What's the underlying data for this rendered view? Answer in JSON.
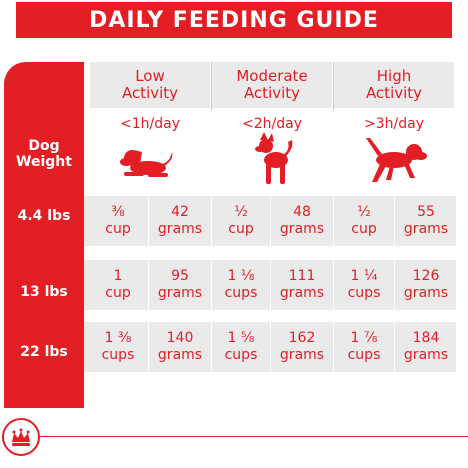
{
  "title": "DAILY FEEDING GUIDE",
  "dog_weight_label": [
    "Dog",
    "Weight"
  ],
  "activities": [
    {
      "label": [
        "Low",
        "Activity"
      ],
      "time": "<1h/day",
      "icon": "lying-dog-icon"
    },
    {
      "label": [
        "Moderate",
        "Activity"
      ],
      "time": "<2h/day",
      "icon": "standing-dog-icon"
    },
    {
      "label": [
        "High",
        "Activity"
      ],
      "time": ">3h/day",
      "icon": "running-dog-icon"
    }
  ],
  "rows": [
    {
      "weight": "4.4 lbs",
      "values": [
        {
          "cups": "⅜",
          "cups_unit": "cup",
          "grams": "42",
          "grams_unit": "grams"
        },
        {
          "cups": "½",
          "cups_unit": "cup",
          "grams": "48",
          "grams_unit": "grams"
        },
        {
          "cups": "½",
          "cups_unit": "cup",
          "grams": "55",
          "grams_unit": "grams"
        }
      ]
    },
    {
      "weight": "13 lbs",
      "values": [
        {
          "cups": "1",
          "cups_unit": "cup",
          "grams": "95",
          "grams_unit": "grams"
        },
        {
          "cups": "1 ⅛",
          "cups_unit": "cups",
          "grams": "111",
          "grams_unit": "grams"
        },
        {
          "cups": "1 ¼",
          "cups_unit": "cups",
          "grams": "126",
          "grams_unit": "grams"
        }
      ]
    },
    {
      "weight": "22 lbs",
      "values": [
        {
          "cups": "1 ⅜",
          "cups_unit": "cups",
          "grams": "140",
          "grams_unit": "grams"
        },
        {
          "cups": "1 ⅝",
          "cups_unit": "cups",
          "grams": "162",
          "grams_unit": "grams"
        },
        {
          "cups": "1 ⅞",
          "cups_unit": "cups",
          "grams": "184",
          "grams_unit": "grams"
        }
      ]
    }
  ],
  "colors": {
    "brand_red": "#e31e24",
    "band_gray": "#eaeaea"
  },
  "footer": {
    "logo": "crown-logo-icon"
  }
}
